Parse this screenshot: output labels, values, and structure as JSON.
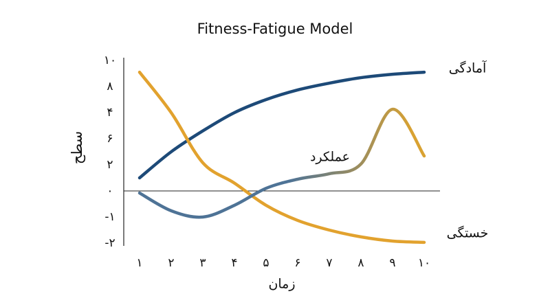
{
  "chart_data": {
    "type": "line",
    "title": "Fitness-Fatigue Model",
    "x_label": "زمان",
    "y_label": "سطح",
    "xlim": [
      1,
      10
    ],
    "xticks": [
      {
        "value": 1,
        "label": "۱"
      },
      {
        "value": 2,
        "label": "۲"
      },
      {
        "value": 3,
        "label": "۳"
      },
      {
        "value": 4,
        "label": "۴"
      },
      {
        "value": 5,
        "label": "۵"
      },
      {
        "value": 6,
        "label": "۶"
      },
      {
        "value": 7,
        "label": "۷"
      },
      {
        "value": 8,
        "label": "۸"
      },
      {
        "value": 9,
        "label": "۹"
      },
      {
        "value": 10,
        "label": "۱۰"
      }
    ],
    "ylim": [
      -2,
      5
    ],
    "y_labels": [
      "-۲",
      "-۱",
      "۰",
      "۲",
      "۶",
      "۴",
      "۸",
      "۱۰"
    ],
    "zero_line": true,
    "x": [
      1,
      2,
      3,
      4,
      5,
      6,
      7,
      8,
      9,
      10
    ],
    "series": [
      {
        "name": "آمادگی",
        "color": "#1d4a78",
        "values": [
          0.5,
          1.5,
          2.3,
          3.0,
          3.5,
          3.87,
          4.13,
          4.34,
          4.47,
          4.55
        ]
      },
      {
        "name": "خستگی",
        "color": "#e2a22e",
        "values": [
          4.55,
          3.0,
          1.08,
          0.3,
          -0.55,
          -1.13,
          -1.5,
          -1.76,
          -1.92,
          -1.97
        ]
      },
      {
        "name": "عملکرد",
        "color": "#4e7396",
        "end_color": "#d9a232",
        "values": [
          -0.08,
          -0.76,
          -1.0,
          -0.55,
          0.1,
          0.45,
          0.66,
          1.03,
          3.13,
          1.34
        ]
      }
    ]
  }
}
